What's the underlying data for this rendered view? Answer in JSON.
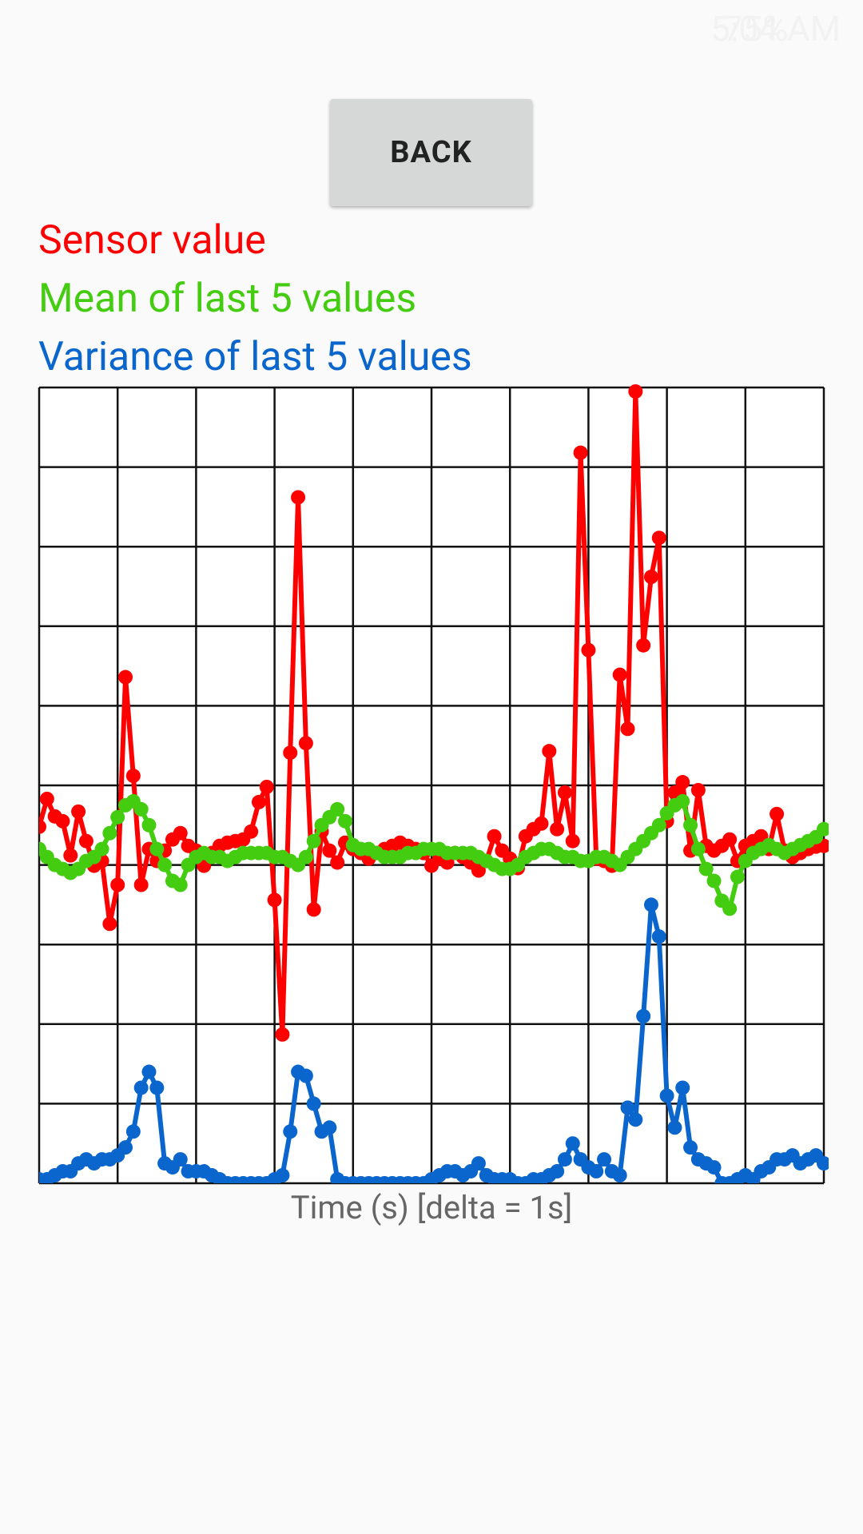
{
  "status_bar": {
    "battery": "75%",
    "time": "5:04 AM"
  },
  "button": {
    "label": "BACK"
  },
  "chart_data": {
    "type": "line",
    "xlabel": "Time (s) [delta = 1s]",
    "x": [
      0,
      1,
      2,
      3,
      4,
      5,
      6,
      7,
      8,
      9,
      10,
      11,
      12,
      13,
      14,
      15,
      16,
      17,
      18,
      19,
      20,
      21,
      22,
      23,
      24,
      25,
      26,
      27,
      28,
      29,
      30,
      31,
      32,
      33,
      34,
      35,
      36,
      37,
      38,
      39,
      40,
      41,
      42,
      43,
      44,
      45,
      46,
      47,
      48,
      49,
      50,
      51,
      52,
      53,
      54,
      55,
      56,
      57,
      58,
      59,
      60,
      61,
      62,
      63,
      64,
      65,
      66,
      67,
      68,
      69,
      70,
      71,
      72,
      73,
      74,
      75,
      76,
      77,
      78,
      79,
      80,
      81,
      82,
      83,
      84,
      85,
      86,
      87,
      88,
      89,
      90,
      91,
      92,
      93,
      94,
      95,
      96,
      97,
      98,
      99,
      100
    ],
    "xlim": [
      0,
      100
    ],
    "ylim": [
      0,
      10
    ],
    "xgrid": [
      0,
      10,
      20,
      30,
      40,
      50,
      60,
      70,
      80,
      90,
      100
    ],
    "ygrid": [
      0,
      1,
      2,
      3,
      4,
      5,
      6,
      7,
      8,
      9,
      10
    ],
    "series": [
      {
        "name": "Sensor value",
        "color": "#ff0000",
        "values": [
          4.48,
          4.83,
          4.61,
          4.55,
          4.12,
          4.67,
          4.3,
          3.99,
          4.05,
          3.26,
          3.75,
          6.36,
          5.12,
          3.75,
          4.2,
          4.05,
          4.18,
          4.32,
          4.4,
          4.24,
          4.18,
          3.99,
          4.15,
          4.24,
          4.28,
          4.3,
          4.32,
          4.42,
          4.79,
          4.98,
          3.56,
          1.87,
          5.41,
          8.62,
          5.53,
          3.44,
          4.42,
          4.18,
          4.03,
          4.28,
          4.2,
          4.15,
          4.08,
          4.15,
          4.2,
          4.24,
          4.28,
          4.24,
          4.2,
          4.15,
          3.99,
          4.08,
          4.03,
          4.15,
          4.1,
          4.03,
          3.93,
          4.05,
          4.36,
          4.18,
          4.08,
          3.96,
          4.36,
          4.45,
          4.52,
          5.43,
          4.45,
          4.91,
          4.3,
          9.18,
          6.7,
          4.08,
          4.05,
          3.99,
          6.39,
          5.71,
          9.95,
          6.76,
          7.62,
          8.11,
          4.55,
          4.91,
          5.04,
          4.18,
          4.94,
          4.24,
          4.18,
          4.24,
          4.32,
          4.05,
          4.24,
          4.3,
          4.36,
          4.2,
          4.64,
          4.18,
          4.1,
          4.15,
          4.2,
          4.23,
          4.24
        ]
      },
      {
        "name": "Mean of last 5 values",
        "color": "#44cc11",
        "values": [
          4.2,
          4.1,
          4.0,
          3.95,
          3.9,
          3.95,
          4.05,
          4.1,
          4.2,
          4.4,
          4.6,
          4.75,
          4.8,
          4.7,
          4.5,
          4.2,
          4.0,
          3.8,
          3.75,
          4.0,
          4.1,
          4.15,
          4.1,
          4.1,
          4.05,
          4.1,
          4.15,
          4.15,
          4.15,
          4.15,
          4.1,
          4.1,
          4.05,
          4.0,
          4.1,
          4.3,
          4.5,
          4.6,
          4.7,
          4.55,
          4.25,
          4.2,
          4.2,
          4.15,
          4.1,
          4.1,
          4.1,
          4.15,
          4.15,
          4.2,
          4.2,
          4.2,
          4.15,
          4.15,
          4.15,
          4.15,
          4.1,
          4.05,
          4.0,
          3.95,
          3.95,
          4.0,
          4.1,
          4.15,
          4.2,
          4.2,
          4.15,
          4.1,
          4.1,
          4.05,
          4.05,
          4.1,
          4.1,
          4.05,
          4.0,
          4.1,
          4.2,
          4.3,
          4.4,
          4.5,
          4.65,
          4.75,
          4.8,
          4.5,
          4.2,
          3.95,
          3.8,
          3.55,
          3.45,
          3.85,
          4.05,
          4.15,
          4.2,
          4.25,
          4.2,
          4.15,
          4.2,
          4.25,
          4.3,
          4.35,
          4.45
        ]
      },
      {
        "name": "Variance of last 5 values",
        "color": "#0a66cc",
        "values": [
          0.05,
          0.05,
          0.1,
          0.15,
          0.15,
          0.25,
          0.3,
          0.25,
          0.3,
          0.3,
          0.35,
          0.45,
          0.65,
          1.2,
          1.4,
          1.2,
          0.25,
          0.2,
          0.3,
          0.15,
          0.15,
          0.15,
          0.1,
          0.05,
          0.0,
          0.0,
          0.0,
          0.0,
          0.0,
          0.0,
          0.05,
          0.1,
          0.65,
          1.4,
          1.35,
          1.0,
          0.65,
          0.7,
          0.05,
          0.0,
          0.0,
          0.0,
          0.0,
          0.0,
          0.0,
          0.0,
          0.0,
          0.0,
          0.0,
          0.0,
          0.05,
          0.1,
          0.15,
          0.15,
          0.1,
          0.15,
          0.25,
          0.1,
          0.05,
          0.05,
          0.05,
          0.0,
          0.0,
          0.05,
          0.05,
          0.1,
          0.15,
          0.3,
          0.5,
          0.3,
          0.2,
          0.15,
          0.3,
          0.15,
          0.1,
          0.95,
          0.8,
          2.1,
          3.5,
          3.1,
          1.1,
          0.7,
          1.2,
          0.45,
          0.3,
          0.25,
          0.2,
          0.0,
          0.0,
          0.05,
          0.1,
          0.05,
          0.15,
          0.2,
          0.3,
          0.3,
          0.35,
          0.25,
          0.3,
          0.35,
          0.25
        ]
      }
    ]
  }
}
